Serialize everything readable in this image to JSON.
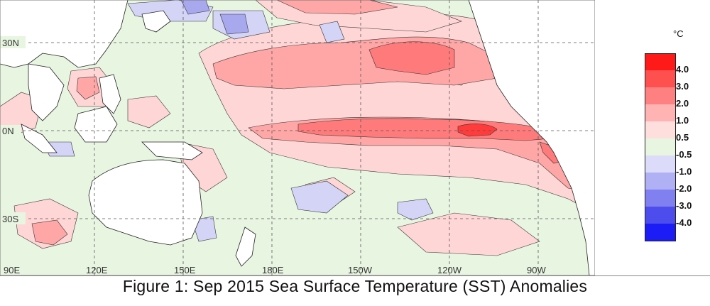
{
  "map": {
    "latitude_labels": [
      "30N",
      "0N",
      "30S"
    ],
    "longitude_labels": [
      "90E",
      "120E",
      "150E",
      "180E",
      "150W",
      "120W",
      "90W"
    ]
  },
  "legend": {
    "unit": "°C",
    "labels": [
      "4.0",
      "3.0",
      "2.0",
      "1.0",
      "0.5",
      "-0.5",
      "-1.0",
      "-2.0",
      "-3.0",
      "-4.0"
    ],
    "colors": [
      "#ff1a1a",
      "#ff5050",
      "#ff8080",
      "#ffb3b3",
      "#ffdede",
      "#e8f5e1",
      "#dcdcfa",
      "#b0b0f5",
      "#8080f0",
      "#4d4dee",
      "#1c1cf7"
    ]
  },
  "colors": {
    "land": "#ffffff",
    "neutral": "#e8f5e1",
    "warm_1": "#ffd6d6",
    "warm_2": "#ffa6a6",
    "warm_3": "#ff7a7a",
    "warm_4": "#ff3b3b",
    "cool_1": "#d4d4f7",
    "cool_2": "#a8a8ef"
  },
  "caption": "Figure 1: Sep 2015 Sea Surface Temperature (SST) Anomalies"
}
